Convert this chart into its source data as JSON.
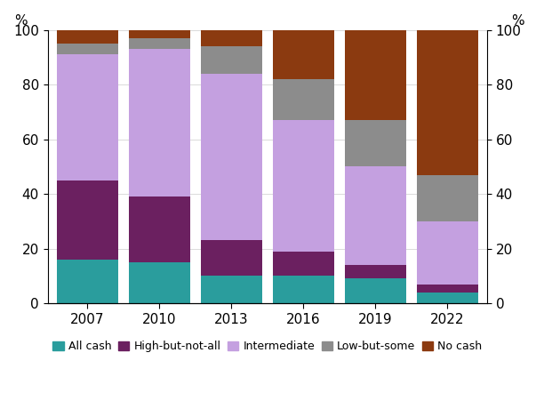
{
  "years": [
    "2007",
    "2010",
    "2013",
    "2016",
    "2019",
    "2022"
  ],
  "categories": [
    "All cash",
    "High-but-not-all",
    "Intermediate",
    "Low-but-some",
    "No cash"
  ],
  "colors": [
    "#2a9d9d",
    "#6b2060",
    "#c4a0e0",
    "#8c8c8c",
    "#8b3a10"
  ],
  "values": {
    "All cash": [
      16,
      15,
      10,
      10,
      9,
      4
    ],
    "High-but-not-all": [
      29,
      24,
      13,
      9,
      5,
      3
    ],
    "Intermediate": [
      46,
      54,
      61,
      48,
      36,
      23
    ],
    "Low-but-some": [
      4,
      4,
      10,
      15,
      17,
      17
    ],
    "No cash": [
      5,
      3,
      6,
      18,
      33,
      53
    ]
  },
  "ylim": [
    0,
    100
  ],
  "yticks": [
    0,
    20,
    40,
    60,
    80,
    100
  ],
  "ylabel": "%",
  "bar_width": 0.85,
  "figsize": [
    6.03,
    4.69
  ],
  "dpi": 100
}
